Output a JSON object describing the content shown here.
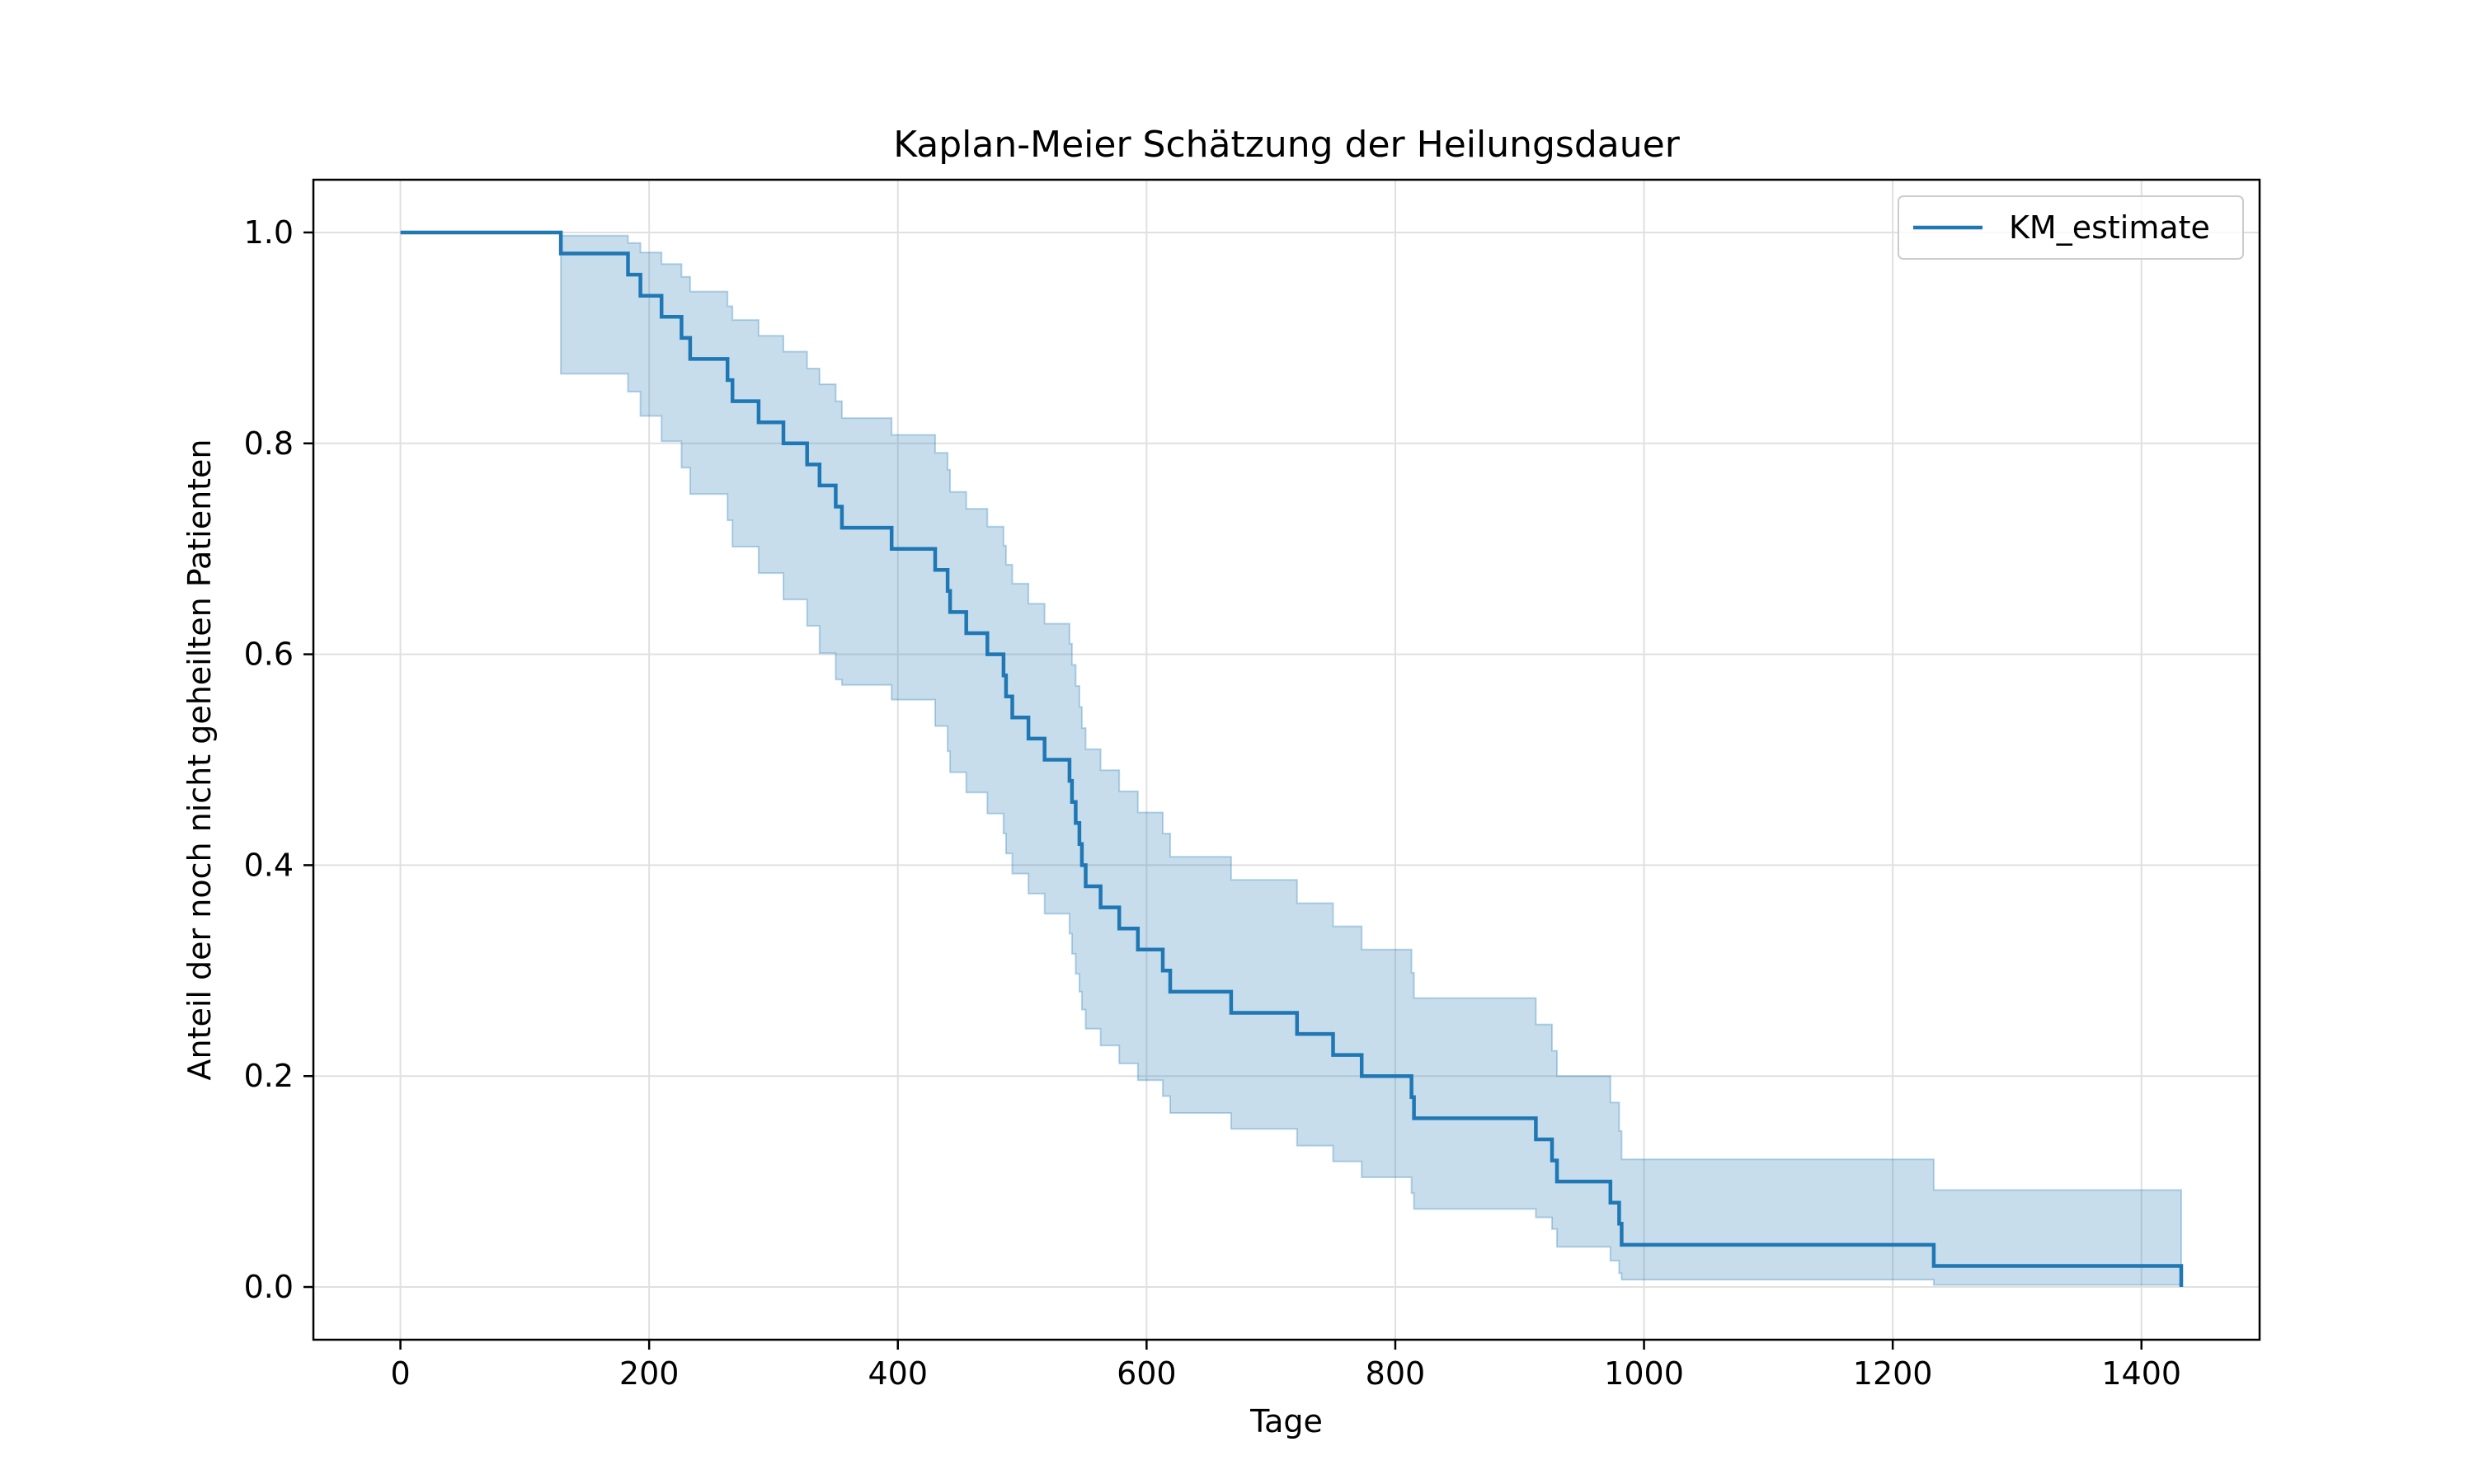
{
  "chart_data": {
    "type": "line",
    "title": "Kaplan-Meier Schätzung der Heilungsdauer",
    "xlabel": "Tage",
    "ylabel": "Anteil der noch nicht geheilten Patienten",
    "xlim": [
      -70,
      1495
    ],
    "ylim": [
      -0.05,
      1.05
    ],
    "xticks": [
      0,
      200,
      400,
      600,
      800,
      1000,
      1200,
      1400
    ],
    "yticks": [
      0.0,
      0.2,
      0.4,
      0.6,
      0.8,
      1.0
    ],
    "xtick_labels": [
      "0",
      "200",
      "400",
      "600",
      "800",
      "1000",
      "1200",
      "1400"
    ],
    "ytick_labels": [
      "0.0",
      "0.2",
      "0.4",
      "0.6",
      "0.8",
      "1.0"
    ],
    "grid": true,
    "legend_position": "top-right",
    "colors": {
      "line": "#1f77b4",
      "band": "#1f77b4",
      "grid": "#e0e0e0"
    },
    "series": [
      {
        "name": "KM_estimate",
        "step": "post",
        "points": [
          [
            0,
            1.0
          ],
          [
            129,
            0.98
          ],
          [
            183,
            0.96
          ],
          [
            193,
            0.94
          ],
          [
            210,
            0.92
          ],
          [
            226,
            0.9
          ],
          [
            233,
            0.88
          ],
          [
            263,
            0.86
          ],
          [
            267,
            0.84
          ],
          [
            288,
            0.82
          ],
          [
            308,
            0.8
          ],
          [
            327,
            0.78
          ],
          [
            337,
            0.76
          ],
          [
            350,
            0.74
          ],
          [
            355,
            0.72
          ],
          [
            395,
            0.7
          ],
          [
            430,
            0.68
          ],
          [
            440,
            0.66
          ],
          [
            442,
            0.64
          ],
          [
            455,
            0.62
          ],
          [
            472,
            0.6
          ],
          [
            485,
            0.58
          ],
          [
            487,
            0.56
          ],
          [
            492,
            0.54
          ],
          [
            505,
            0.52
          ],
          [
            518,
            0.5
          ],
          [
            538,
            0.48
          ],
          [
            540,
            0.46
          ],
          [
            543,
            0.44
          ],
          [
            546,
            0.42
          ],
          [
            548,
            0.4
          ],
          [
            551,
            0.38
          ],
          [
            563,
            0.36
          ],
          [
            578,
            0.34
          ],
          [
            593,
            0.32
          ],
          [
            613,
            0.3
          ],
          [
            619,
            0.28
          ],
          [
            668,
            0.26
          ],
          [
            721,
            0.24
          ],
          [
            750,
            0.22
          ],
          [
            773,
            0.2
          ],
          [
            813,
            0.18
          ],
          [
            815,
            0.16
          ],
          [
            913,
            0.14
          ],
          [
            926,
            0.12
          ],
          [
            930,
            0.1
          ],
          [
            973,
            0.08
          ],
          [
            980,
            0.06
          ],
          [
            982,
            0.04
          ],
          [
            1233,
            0.02
          ],
          [
            1432,
            0.0
          ]
        ]
      }
    ],
    "confidence_band": {
      "lower": [
        [
          0,
          1.0
        ],
        [
          129,
          0.866
        ],
        [
          183,
          0.849
        ],
        [
          193,
          0.826
        ],
        [
          210,
          0.802
        ],
        [
          226,
          0.777
        ],
        [
          233,
          0.752
        ],
        [
          263,
          0.727
        ],
        [
          267,
          0.702
        ],
        [
          288,
          0.677
        ],
        [
          308,
          0.652
        ],
        [
          327,
          0.627
        ],
        [
          337,
          0.601
        ],
        [
          350,
          0.576
        ],
        [
          355,
          0.571
        ],
        [
          395,
          0.557
        ],
        [
          430,
          0.532
        ],
        [
          440,
          0.508
        ],
        [
          442,
          0.488
        ],
        [
          455,
          0.469
        ],
        [
          472,
          0.449
        ],
        [
          485,
          0.43
        ],
        [
          487,
          0.411
        ],
        [
          492,
          0.392
        ],
        [
          505,
          0.373
        ],
        [
          518,
          0.354
        ],
        [
          538,
          0.335
        ],
        [
          540,
          0.316
        ],
        [
          543,
          0.297
        ],
        [
          546,
          0.28
        ],
        [
          548,
          0.263
        ],
        [
          551,
          0.245
        ],
        [
          563,
          0.229
        ],
        [
          578,
          0.212
        ],
        [
          593,
          0.196
        ],
        [
          613,
          0.181
        ],
        [
          619,
          0.165
        ],
        [
          668,
          0.15
        ],
        [
          721,
          0.134
        ],
        [
          750,
          0.119
        ],
        [
          773,
          0.104
        ],
        [
          813,
          0.089
        ],
        [
          815,
          0.074
        ],
        [
          913,
          0.066
        ],
        [
          926,
          0.055
        ],
        [
          930,
          0.038
        ],
        [
          973,
          0.025
        ],
        [
          980,
          0.013
        ],
        [
          982,
          0.007
        ],
        [
          1233,
          0.002
        ],
        [
          1432,
          0.0
        ]
      ],
      "upper": [
        [
          0,
          1.0
        ],
        [
          129,
          0.997
        ],
        [
          183,
          0.99
        ],
        [
          193,
          0.981
        ],
        [
          210,
          0.97
        ],
        [
          226,
          0.958
        ],
        [
          233,
          0.944
        ],
        [
          263,
          0.93
        ],
        [
          267,
          0.917
        ],
        [
          288,
          0.902
        ],
        [
          308,
          0.887
        ],
        [
          327,
          0.871
        ],
        [
          337,
          0.856
        ],
        [
          350,
          0.84
        ],
        [
          355,
          0.824
        ],
        [
          395,
          0.808
        ],
        [
          430,
          0.791
        ],
        [
          440,
          0.775
        ],
        [
          442,
          0.754
        ],
        [
          455,
          0.738
        ],
        [
          472,
          0.721
        ],
        [
          485,
          0.703
        ],
        [
          487,
          0.685
        ],
        [
          492,
          0.667
        ],
        [
          505,
          0.648
        ],
        [
          518,
          0.629
        ],
        [
          538,
          0.61
        ],
        [
          540,
          0.59
        ],
        [
          543,
          0.57
        ],
        [
          546,
          0.55
        ],
        [
          548,
          0.53
        ],
        [
          551,
          0.51
        ],
        [
          563,
          0.49
        ],
        [
          578,
          0.47
        ],
        [
          593,
          0.45
        ],
        [
          613,
          0.43
        ],
        [
          619,
          0.408
        ],
        [
          668,
          0.386
        ],
        [
          721,
          0.364
        ],
        [
          750,
          0.342
        ],
        [
          773,
          0.32
        ],
        [
          813,
          0.298
        ],
        [
          815,
          0.274
        ],
        [
          913,
          0.249
        ],
        [
          926,
          0.224
        ],
        [
          930,
          0.2
        ],
        [
          973,
          0.175
        ],
        [
          980,
          0.148
        ],
        [
          982,
          0.121
        ],
        [
          1233,
          0.092
        ],
        [
          1432,
          0.092
        ]
      ]
    }
  }
}
